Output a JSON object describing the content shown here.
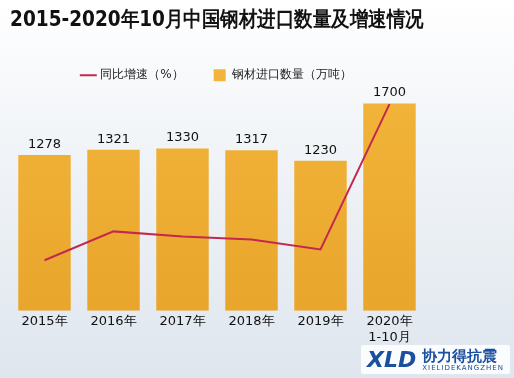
{
  "chart_data": {
    "type": "bar",
    "title": "2015-2020年10月中国钢材进口数量及增速情况",
    "categories": [
      "2015年",
      "2016年",
      "2017年",
      "2018年",
      "2019年",
      "2020年\n1-10月"
    ],
    "series": [
      {
        "name": "钢材进口数量（万吨）",
        "type": "bar",
        "color": "#f2b43a",
        "values": [
          1278,
          1321,
          1330,
          1317,
          1230,
          1700
        ]
      },
      {
        "name": "同比增速（%）",
        "type": "line",
        "color": "#c3284f",
        "axis": "y2",
        "values": [
          -12.4,
          3.4,
          0.6,
          -1.0,
          -6.5,
          72.9
        ]
      }
    ],
    "ylim": [
      0,
      1800
    ],
    "y2lim": [
      -40,
      80
    ],
    "grid": false,
    "legend": "top",
    "data_labels": true,
    "tick_labels": "x",
    "annotations": [
      "XLD",
      "协力得抗震",
      "XIELIDEKANGZHEN"
    ]
  }
}
